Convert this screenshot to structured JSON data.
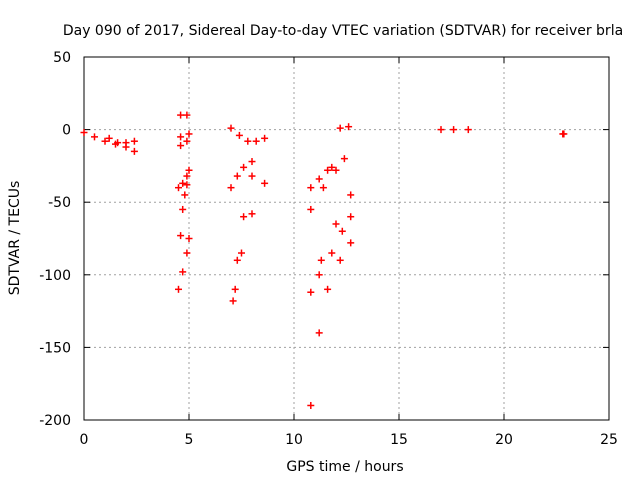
{
  "chart_data": {
    "type": "scatter",
    "title": "Day 090 of 2017, Sidereal Day-to-day VTEC variation (SDTVAR) for receiver brla",
    "xlabel": "GPS time / hours",
    "ylabel": "SDTVAR / TECUs",
    "xlim": [
      0,
      25
    ],
    "ylim": [
      -200,
      50
    ],
    "xticks": [
      0,
      5,
      10,
      15,
      20,
      25
    ],
    "yticks": [
      -200,
      -150,
      -100,
      -50,
      0,
      50
    ],
    "grid": true,
    "marker": "+",
    "series_color": "#ff0000",
    "tracks": [
      {
        "x": [
          0.0,
          0.5,
          1.0,
          1.5,
          2.0,
          2.4
        ],
        "y": [
          -2,
          -5,
          -8,
          -10,
          -9,
          -8
        ]
      },
      {
        "x": [
          1.2,
          1.6,
          2.0,
          2.4
        ],
        "y": [
          -6,
          -9,
          -12,
          -15
        ]
      },
      {
        "x": [
          4.6,
          4.9
        ],
        "y": [
          10,
          10
        ]
      },
      {
        "x": [
          4.6,
          5.0
        ],
        "y": [
          -5,
          -3
        ]
      },
      {
        "x": [
          4.6,
          4.9
        ],
        "y": [
          -11,
          -8
        ]
      },
      {
        "x": [
          4.5,
          4.7,
          4.9,
          5.0
        ],
        "y": [
          -40,
          -37,
          -32,
          -28
        ]
      },
      {
        "x": [
          4.6,
          4.7,
          4.8,
          4.9
        ],
        "y": [
          -73,
          -55,
          -45,
          -38
        ]
      },
      {
        "x": [
          4.5,
          4.7,
          4.9,
          5.0
        ],
        "y": [
          -110,
          -98,
          -85,
          -75
        ]
      },
      {
        "x": [
          7.0,
          7.4,
          7.8,
          8.2,
          8.6
        ],
        "y": [
          1,
          -4,
          -8,
          -8,
          -6
        ]
      },
      {
        "x": [
          7.0,
          7.3,
          7.6,
          8.0
        ],
        "y": [
          -40,
          -32,
          -26,
          -22
        ]
      },
      {
        "x": [
          7.1,
          7.3,
          7.6,
          8.0
        ],
        "y": [
          -118,
          -90,
          -60,
          -32
        ]
      },
      {
        "x": [
          7.2,
          7.5,
          8.0,
          8.6
        ],
        "y": [
          -110,
          -85,
          -58,
          -37
        ]
      },
      {
        "x": [
          10.8,
          11.2,
          11.6,
          11.8
        ],
        "y": [
          -40,
          -34,
          -28,
          -26
        ]
      },
      {
        "x": [
          10.8,
          11.4,
          12.0,
          12.4
        ],
        "y": [
          -55,
          -40,
          -28,
          -20
        ]
      },
      {
        "x": [
          10.8,
          11.3,
          12.0,
          12.7
        ],
        "y": [
          -112,
          -90,
          -65,
          -45
        ]
      },
      {
        "x": [
          11.2,
          11.8,
          12.3,
          12.7
        ],
        "y": [
          -100,
          -85,
          -70,
          -60
        ]
      },
      {
        "x": [
          10.8,
          11.2,
          11.6,
          12.2,
          12.7
        ],
        "y": [
          -190,
          -140,
          -110,
          -90,
          -78
        ]
      },
      {
        "x": [
          12.2,
          12.6
        ],
        "y": [
          1,
          2
        ]
      },
      {
        "x": [
          17.0,
          17.6,
          18.3
        ],
        "y": [
          0,
          0,
          0
        ]
      },
      {
        "x": [
          22.8,
          22.85
        ],
        "y": [
          -3,
          -3
        ]
      }
    ]
  }
}
